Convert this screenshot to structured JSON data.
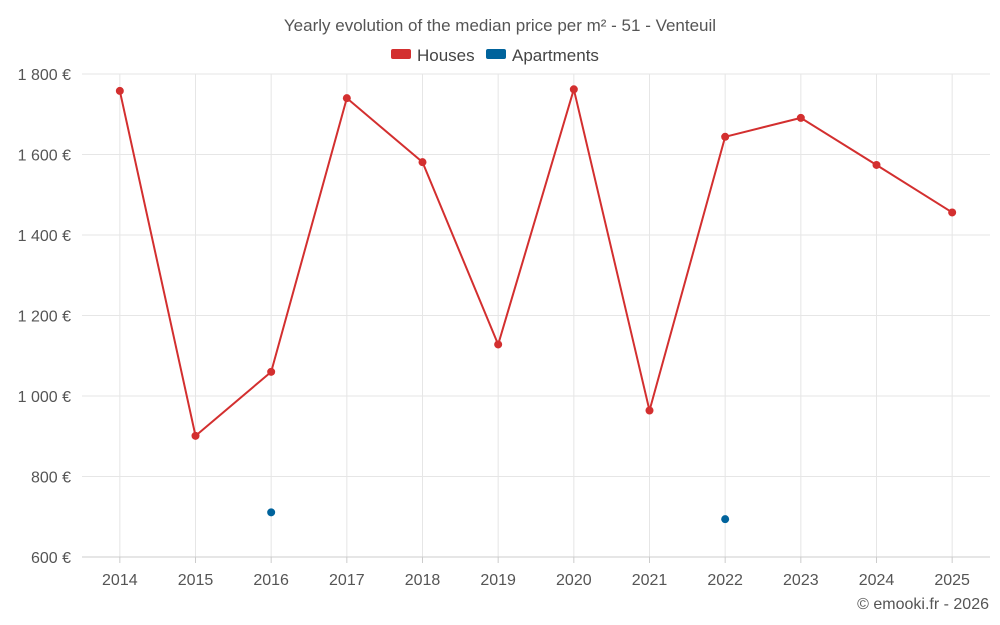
{
  "chart_data": {
    "type": "line",
    "title": "Yearly evolution of the median price per m² - 51 - Venteuil",
    "categories": [
      "2014",
      "2015",
      "2016",
      "2017",
      "2018",
      "2019",
      "2020",
      "2021",
      "2022",
      "2023",
      "2024",
      "2025"
    ],
    "series": [
      {
        "name": "Houses",
        "color": "#d32f2f",
        "values": [
          1758,
          901,
          1060,
          1740,
          1581,
          1128,
          1762,
          964,
          1644,
          1691,
          1574,
          1456
        ]
      },
      {
        "name": "Apartments",
        "color": "#00639c",
        "values": [
          null,
          null,
          711,
          null,
          null,
          null,
          null,
          null,
          694,
          null,
          null,
          null
        ]
      }
    ],
    "y_ticks": [
      600,
      800,
      1000,
      1200,
      1400,
      1600,
      1800
    ],
    "y_tick_labels": [
      "600 €",
      "800 €",
      "1 000 €",
      "1 200 €",
      "1 400 €",
      "1 600 €",
      "1 800 €"
    ],
    "ylim": [
      600,
      1800
    ],
    "xlabel": "",
    "ylabel": "",
    "grid": true,
    "legend_position": "top-center",
    "credit": "© emooki.fr - 2026"
  }
}
